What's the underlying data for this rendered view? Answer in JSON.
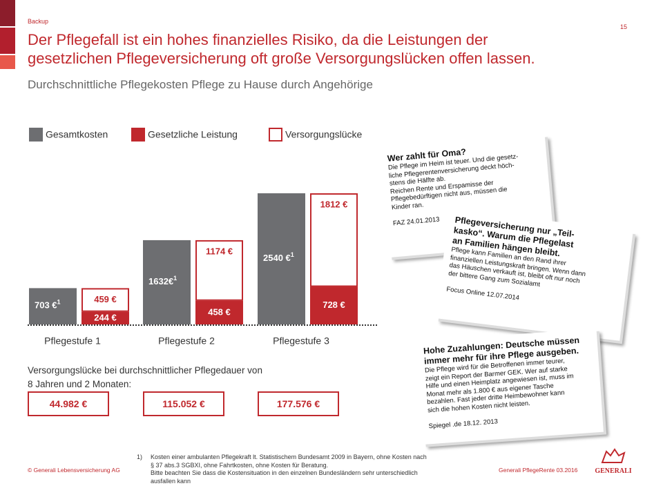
{
  "header": {
    "label": "Backup",
    "page": "15",
    "title_lines": [
      "Der Pflegefall ist ein hohes finanzielles Risiko, da die Leistungen der",
      "gesetzlichen Pflegeversicherung oft große Versorgungslücken offen lassen."
    ],
    "subtitle": "Durchschnittliche Pflegekosten Pflege zu Hause durch Angehörige"
  },
  "chart_data": {
    "type": "bar",
    "categories": [
      "Pflegestufe 1",
      "Pflegestufe 2",
      "Pflegestufe 3"
    ],
    "series": [
      {
        "name": "Gesamtkosten",
        "color": "#6d6e71",
        "values": [
          703,
          1632,
          2540
        ],
        "value_labels": [
          "703 €",
          "1632€",
          "2540 €"
        ],
        "footnote_mark": "1"
      },
      {
        "name": "Gesetzliche Leistung",
        "color": "#c0282d",
        "values": [
          244,
          458,
          728
        ],
        "value_labels": [
          "244 €",
          "458 €",
          "728 €"
        ]
      },
      {
        "name": "Versorgungslücke",
        "color": "#ffffff",
        "border": "#c0282d",
        "values": [
          459,
          1174,
          1812
        ],
        "value_labels": [
          "459 €",
          "1174 €",
          "1812 €"
        ]
      }
    ]
  },
  "totals": {
    "caption_lines": [
      "Versorgungslücke bei durchschnittlicher Pflegedauer von",
      "8 Jahren und 2 Monaten:"
    ],
    "values": [
      "44.982 €",
      "115.052 €",
      "177.576 €"
    ]
  },
  "clippings": [
    {
      "headline_lines": [
        "Wer zahlt für Oma?"
      ],
      "body_lines": [
        "Die Pflege im Heim ist teuer. Und die gesetz-",
        "liche Pflegerentenversicherung deckt höch-",
        "stens die Hälfte ab.",
        "Reichen Rente und Erspamisse der",
        "Pflegebedürftigen nicht aus, müssen die",
        "Kinder ran."
      ],
      "source": "FAZ 24.01.2013"
    },
    {
      "headline_lines": [
        "Pflegeversicherung nur „Teil-",
        "kasko“. Warum die Pflegelast",
        "an Familien hängen bleibt."
      ],
      "body_lines": [
        "Pflege kann Familien an den Rand ihrer",
        "finanziellen Leistungskraft bringen. Wenn dann",
        "das Häuschen verkauft ist, bleibt oft nur noch",
        "der bittere Gang zum Sozialamt"
      ],
      "source": "Focus Online 12.07.2014"
    },
    {
      "headline_lines": [
        "Hohe Zuzahlungen: Deutsche müssen",
        "immer mehr für ihre Pflege ausgeben."
      ],
      "body_lines": [
        "Die Pflege wird für die Betroffenen immer teurer,",
        "zeigt ein Report der Barmer GEK. Wer auf starke",
        "Hilfe und einen Heimplatz angewiesen ist, muss im",
        "Monat mehr als 1.800 € aus eigener Tasche",
        "bezahlen. Fast jeder dritte Heimbewohner kann",
        "sich die hohen Kosten nicht leisten."
      ],
      "source": "Spiegel .de 18.12. 2013"
    }
  ],
  "footer": {
    "footnote_mark": "1)",
    "footnote_lines": [
      "Kosten einer ambulanten Pflegekraft lt. Statistischem Bundesamt 2009 in Bayern, ohne Kosten nach",
      "§ 37 abs.3 SGBXI, ohne Fahrtkosten, ohne Kosten für Beratung.",
      "Bitte beachten Sie dass die Kostensituation in den einzelnen Bundesländern sehr unterschiedlich",
      "ausfallen kann"
    ],
    "copyright": "© Generali Lebensversicherung AG",
    "product": "Generali PflegeRente 03.2016",
    "logo": "GENERALI"
  }
}
